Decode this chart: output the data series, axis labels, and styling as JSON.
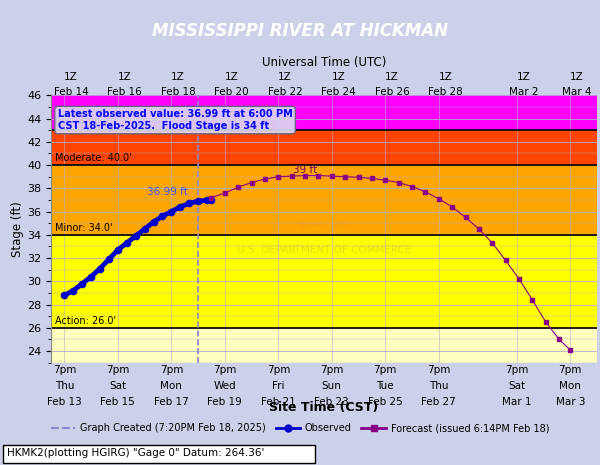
{
  "title": "MISSISSIPPI RIVER AT HICKMAN",
  "background_color": "#ccd0e8",
  "plot_bg_color": "#ffffc0",
  "ylim": [
    23,
    46
  ],
  "xlim": [
    -5.708,
    14.708
  ],
  "flood_stages": {
    "action": 26.0,
    "minor": 34.0,
    "moderate": 40.0,
    "major": 43.0
  },
  "flood_colors": {
    "below_action": "#ffffc0",
    "action_to_minor": "#ffff00",
    "minor_to_moderate": "#ffa500",
    "moderate_to_major": "#ff4500",
    "above_major": "#ff00ff"
  },
  "annotation_box_text": "Latest observed value: 36.99 ft at 6:00 PM\nCST 18-Feb-2025.  Flood Stage is 34 ft",
  "annotation_36ft": "36.99 ft",
  "annotation_39ft": "39 ft",
  "dashed_x": -0.194,
  "utc_tick_x": [
    -4.958,
    -2.958,
    -0.958,
    1.042,
    3.042,
    5.042,
    7.042,
    9.042,
    11.958,
    13.958
  ],
  "utc_tick_top": [
    "1Z",
    "1Z",
    "1Z",
    "1Z",
    "1Z",
    "1Z",
    "1Z",
    "1Z",
    "1Z",
    "1Z"
  ],
  "utc_tick_bot": [
    "Feb 14",
    "Feb 16",
    "Feb 18",
    "Feb 20",
    "Feb 22",
    "Feb 24",
    "Feb 26",
    "Feb 28",
    "Mar 2",
    "Mar 4"
  ],
  "cst_tick_x": [
    -5.208,
    -3.208,
    -1.208,
    0.792,
    2.792,
    4.792,
    6.792,
    8.792,
    11.708,
    13.708
  ],
  "cst_tick_row1": [
    "7pm",
    "7pm",
    "7pm",
    "7pm",
    "7pm",
    "7pm",
    "7pm",
    "7pm",
    "7pm",
    "7pm"
  ],
  "cst_tick_row2": [
    "Thu",
    "Sat",
    "Mon",
    "Wed",
    "Fri",
    "Sun",
    "Tue",
    "Thu",
    "Sat",
    "Mon"
  ],
  "cst_tick_row3": [
    "Feb 13",
    "Feb 15",
    "Feb 17",
    "Feb 19",
    "Feb 21",
    "Feb 23",
    "Feb 25",
    "Feb 27",
    "Mar 1",
    "Mar 3"
  ],
  "observed_x": [
    -5.208,
    -4.875,
    -4.542,
    -4.208,
    -3.875,
    -3.542,
    -3.208,
    -2.875,
    -2.542,
    -2.208,
    -1.875,
    -1.542,
    -1.208,
    -0.875,
    -0.542,
    -0.208,
    0.125,
    0.292
  ],
  "observed_y": [
    28.8,
    29.2,
    29.8,
    30.4,
    31.1,
    31.9,
    32.7,
    33.3,
    33.9,
    34.5,
    35.1,
    35.6,
    36.0,
    36.4,
    36.7,
    36.9,
    36.96,
    36.99
  ],
  "forecast_x": [
    0.292,
    0.792,
    1.292,
    1.792,
    2.292,
    2.792,
    3.292,
    3.792,
    4.292,
    4.792,
    5.292,
    5.792,
    6.292,
    6.792,
    7.292,
    7.792,
    8.292,
    8.792,
    9.292,
    9.792,
    10.292,
    10.792,
    11.292,
    11.792,
    12.292,
    12.792,
    13.292,
    13.708
  ],
  "forecast_y": [
    37.2,
    37.6,
    38.1,
    38.5,
    38.8,
    39.0,
    39.05,
    39.1,
    39.1,
    39.05,
    39.0,
    38.95,
    38.85,
    38.7,
    38.5,
    38.15,
    37.7,
    37.1,
    36.4,
    35.5,
    34.5,
    33.3,
    31.8,
    30.2,
    28.4,
    26.5,
    25.0,
    24.1
  ],
  "observed_color": "#0000cc",
  "forecast_color": "#880088",
  "dashed_color": "#8888cc",
  "grid_color": "#b0b0cc",
  "footer_text": "HKMK2(plotting HGIRG) \"Gage 0\" Datum: 264.36'",
  "legend_labels": [
    "Graph Created (7:20PM Feb 18, 2025)",
    "Observed",
    "Forecast (issued 6:14PM Feb 18)"
  ]
}
